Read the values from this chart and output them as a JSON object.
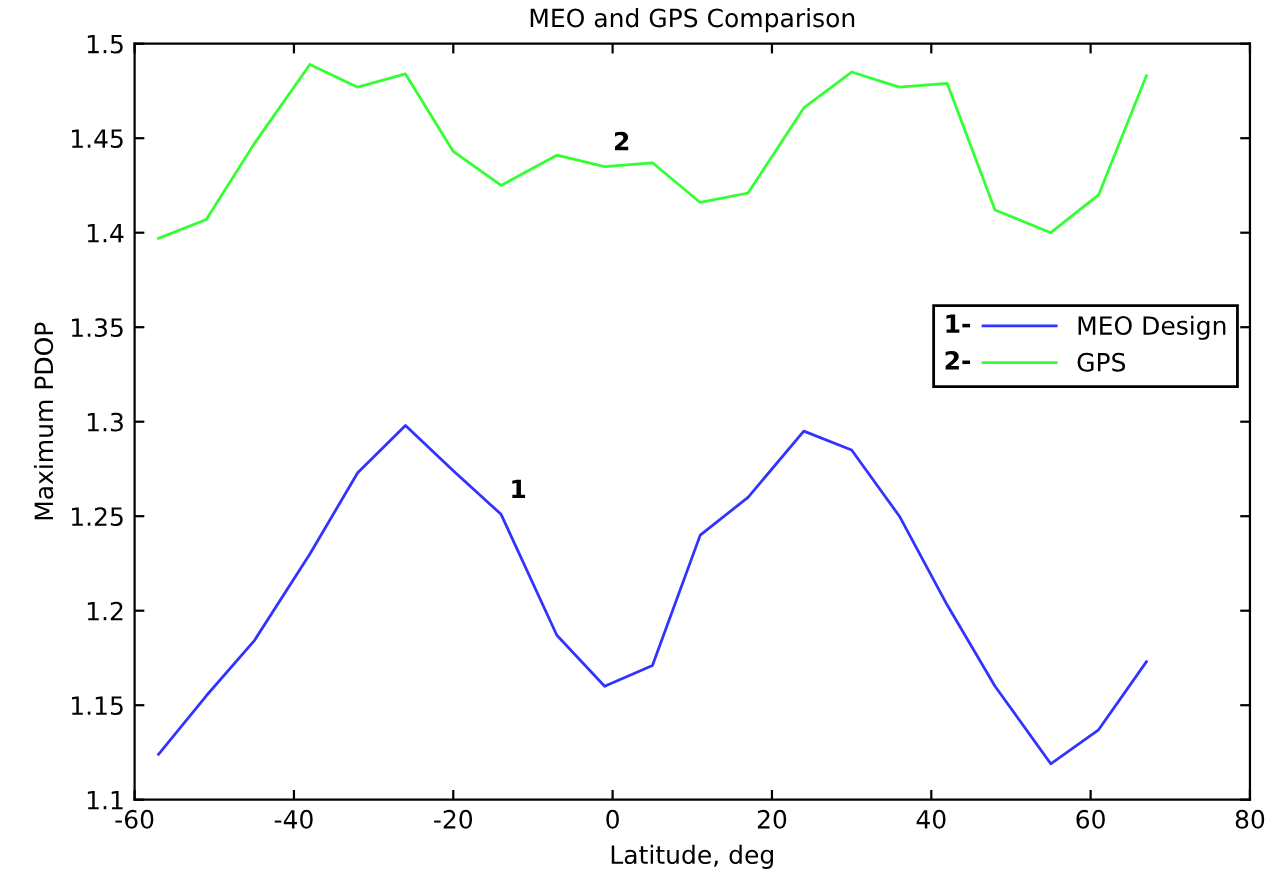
{
  "chart_data": {
    "type": "line",
    "title": "MEO and GPS Comparison",
    "xlabel": "Latitude, deg",
    "ylabel": "Maximum PDOP",
    "x": [
      -57,
      -51,
      -45,
      -38,
      -32,
      -26,
      -20,
      -14,
      -7,
      -1,
      5,
      11,
      17,
      24,
      30,
      36,
      42,
      48,
      55,
      61,
      67
    ],
    "series": [
      {
        "name": "MEO Design",
        "color": "#3333ff",
        "values": [
          1.124,
          1.155,
          1.184,
          1.23,
          1.273,
          1.298,
          1.274,
          1.251,
          1.187,
          1.16,
          1.171,
          1.24,
          1.26,
          1.295,
          1.285,
          1.25,
          1.203,
          1.16,
          1.119,
          1.137,
          1.173
        ]
      },
      {
        "name": "GPS",
        "color": "#33ff33",
        "values": [
          1.397,
          1.407,
          1.447,
          1.489,
          1.477,
          1.484,
          1.443,
          1.425,
          1.441,
          1.435,
          1.437,
          1.416,
          1.421,
          1.466,
          1.485,
          1.477,
          1.479,
          1.412,
          1.4,
          1.42,
          1.483
        ]
      }
    ],
    "xlim": [
      -60,
      80
    ],
    "xticks": [
      -60,
      -40,
      -20,
      0,
      20,
      40,
      60,
      80
    ],
    "ylim": [
      1.1,
      1.5
    ],
    "yticks": [
      1.1,
      1.15,
      1.2,
      1.25,
      1.3,
      1.35,
      1.4,
      1.45,
      1.5
    ],
    "annotations": [
      "1-",
      "2-",
      {
        "text": "1",
        "x": -14,
        "y": 1.251
      },
      {
        "text": "2",
        "x": -1,
        "y": 1.435
      }
    ],
    "legend": "right",
    "grid": false,
    "line_style": "solid",
    "marker": "none"
  }
}
